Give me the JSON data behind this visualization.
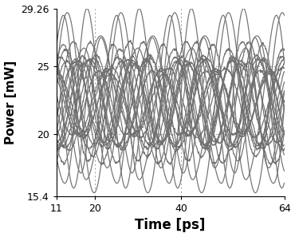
{
  "xlim": [
    11,
    64
  ],
  "ylim": [
    15.4,
    29.26
  ],
  "xlabel": "Time [ps]",
  "ylabel": "Power [mW]",
  "xticks": [
    11,
    20,
    40,
    64
  ],
  "yticks": [
    15.4,
    20,
    25,
    29.26
  ],
  "ytick_labels": [
    "15.4",
    "20",
    "25",
    "29.26"
  ],
  "xtick_labels": [
    "11",
    "20",
    "40",
    "64"
  ],
  "vlines": [
    20,
    40,
    64
  ],
  "hlines": [
    20,
    25
  ],
  "line_color": "#707070",
  "line_width": 0.85,
  "n_traces": 20,
  "seed": 7,
  "t_start": 11,
  "t_end": 64,
  "n_points": 600,
  "mean_power": 22.3,
  "base_amplitude": 4.5,
  "period": 12.5,
  "background_color": "#ffffff",
  "grid_color": "#999999",
  "tick_fontsize": 9,
  "xlabel_fontsize": 12,
  "ylabel_fontsize": 11,
  "xlabel_fontweight": "bold",
  "ylabel_fontweight": "bold"
}
